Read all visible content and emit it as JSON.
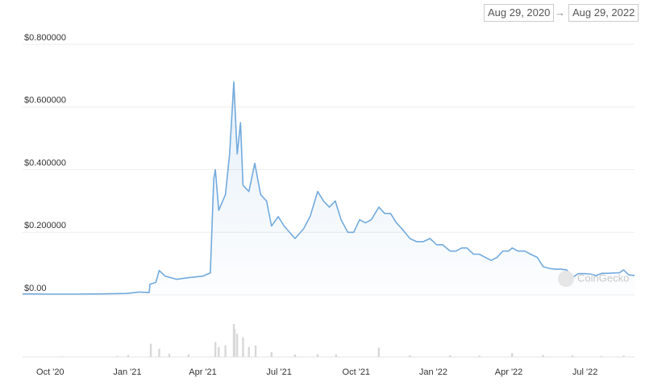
{
  "range": {
    "from": "Aug 29, 2020",
    "to": "Aug 29, 2022"
  },
  "watermark": "CoinGecko",
  "chart_data": [
    {
      "type": "line",
      "color": "#72aadd",
      "grid": true,
      "xlim": [
        "2020-08-29",
        "2022-08-29"
      ],
      "xticks": [
        {
          "value": "2020-10-01",
          "label": "Oct '20"
        },
        {
          "value": "2021-01-01",
          "label": "Jan '21"
        },
        {
          "value": "2021-04-01",
          "label": "Apr '21"
        },
        {
          "value": "2021-07-01",
          "label": "Jul '21"
        },
        {
          "value": "2021-10-01",
          "label": "Oct '21"
        },
        {
          "value": "2022-01-01",
          "label": "Jan '22"
        },
        {
          "value": "2022-04-01",
          "label": "Apr '22"
        },
        {
          "value": "2022-07-01",
          "label": "Jul '22"
        }
      ],
      "ylim": [
        0,
        0.8
      ],
      "yticks": [
        {
          "value": 0,
          "label": "$0.00"
        },
        {
          "value": 0.2,
          "label": "$0.200000"
        },
        {
          "value": 0.4,
          "label": "$0.400000"
        },
        {
          "value": 0.6,
          "label": "$0.600000"
        },
        {
          "value": 0.8,
          "label": "$0.800000"
        }
      ],
      "x": [
        "2020-08-29",
        "2020-09-30",
        "2020-10-31",
        "2020-11-30",
        "2020-12-31",
        "2021-01-15",
        "2021-01-27",
        "2021-01-28",
        "2021-02-04",
        "2021-02-08",
        "2021-02-15",
        "2021-03-01",
        "2021-03-15",
        "2021-04-01",
        "2021-04-10",
        "2021-04-14",
        "2021-04-16",
        "2021-04-20",
        "2021-04-28",
        "2021-05-03",
        "2021-05-08",
        "2021-05-12",
        "2021-05-16",
        "2021-05-19",
        "2021-05-26",
        "2021-06-02",
        "2021-06-09",
        "2021-06-16",
        "2021-06-22",
        "2021-06-30",
        "2021-07-07",
        "2021-07-20",
        "2021-07-30",
        "2021-08-07",
        "2021-08-16",
        "2021-08-23",
        "2021-08-30",
        "2021-09-06",
        "2021-09-13",
        "2021-09-21",
        "2021-09-28",
        "2021-10-05",
        "2021-10-12",
        "2021-10-19",
        "2021-10-28",
        "2021-11-04",
        "2021-11-11",
        "2021-11-18",
        "2021-11-25",
        "2021-12-04",
        "2021-12-12",
        "2021-12-20",
        "2021-12-28",
        "2022-01-05",
        "2022-01-12",
        "2022-01-21",
        "2022-01-28",
        "2022-02-04",
        "2022-02-10",
        "2022-02-18",
        "2022-02-25",
        "2022-03-04",
        "2022-03-11",
        "2022-03-18",
        "2022-03-25",
        "2022-04-01",
        "2022-04-05",
        "2022-04-12",
        "2022-04-20",
        "2022-04-27",
        "2022-05-05",
        "2022-05-12",
        "2022-05-19",
        "2022-05-26",
        "2022-06-02",
        "2022-06-09",
        "2022-06-16",
        "2022-06-23",
        "2022-06-30",
        "2022-07-07",
        "2022-07-14",
        "2022-07-21",
        "2022-07-28",
        "2022-08-04",
        "2022-08-11",
        "2022-08-16",
        "2022-08-22",
        "2022-08-29"
      ],
      "values": [
        0.0034,
        0.0026,
        0.0026,
        0.0034,
        0.0047,
        0.0093,
        0.0075,
        0.034,
        0.04,
        0.078,
        0.06,
        0.05,
        0.055,
        0.06,
        0.07,
        0.37,
        0.4,
        0.27,
        0.32,
        0.45,
        0.68,
        0.45,
        0.55,
        0.35,
        0.33,
        0.42,
        0.32,
        0.3,
        0.22,
        0.25,
        0.22,
        0.18,
        0.21,
        0.25,
        0.33,
        0.3,
        0.28,
        0.3,
        0.24,
        0.2,
        0.2,
        0.24,
        0.23,
        0.24,
        0.28,
        0.26,
        0.26,
        0.23,
        0.21,
        0.18,
        0.17,
        0.17,
        0.18,
        0.16,
        0.16,
        0.14,
        0.14,
        0.15,
        0.15,
        0.13,
        0.13,
        0.12,
        0.11,
        0.12,
        0.14,
        0.14,
        0.15,
        0.14,
        0.14,
        0.13,
        0.12,
        0.09,
        0.085,
        0.082,
        0.082,
        0.08,
        0.056,
        0.068,
        0.068,
        0.067,
        0.062,
        0.069,
        0.069,
        0.07,
        0.071,
        0.08,
        0.064,
        0.062
      ]
    },
    {
      "type": "bar",
      "color": "#d8d8d8",
      "xlim": [
        "2020-08-29",
        "2022-08-29"
      ],
      "ylim": [
        0,
        1
      ],
      "x": [
        "2020-10-15",
        "2020-12-20",
        "2021-01-02",
        "2021-01-29",
        "2021-02-08",
        "2021-02-20",
        "2021-03-15",
        "2021-04-16",
        "2021-04-20",
        "2021-04-28",
        "2021-05-08",
        "2021-05-09",
        "2021-05-12",
        "2021-05-19",
        "2021-05-26",
        "2021-06-03",
        "2021-06-22",
        "2021-07-20",
        "2021-08-16",
        "2021-09-07",
        "2021-10-28",
        "2021-12-04",
        "2022-01-21",
        "2022-02-25",
        "2022-04-05",
        "2022-05-12",
        "2022-06-16",
        "2022-07-20",
        "2022-08-16"
      ],
      "values": [
        0.02,
        0.03,
        0.06,
        0.4,
        0.25,
        0.1,
        0.08,
        0.45,
        0.3,
        0.35,
        1.0,
        0.85,
        0.7,
        0.6,
        0.3,
        0.35,
        0.15,
        0.08,
        0.08,
        0.08,
        0.28,
        0.05,
        0.05,
        0.04,
        0.12,
        0.06,
        0.05,
        0.03,
        0.04
      ]
    }
  ]
}
